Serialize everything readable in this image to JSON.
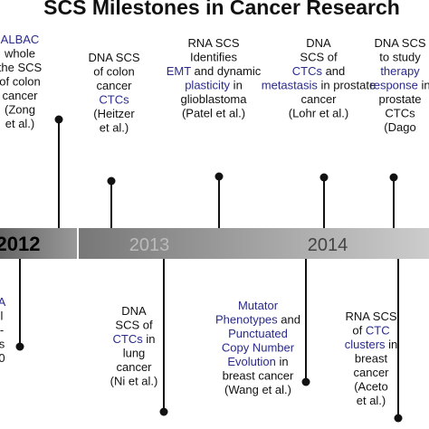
{
  "title": "SCS Milestones in Cancer Research",
  "highlight_color": "#2a2a8c",
  "years": [
    "2012",
    "2013",
    "2014"
  ],
  "top_events": [
    {
      "lines": [
        [
          {
            "text": "ALBAC",
            "color": "#2a2a8c"
          }
        ],
        "whole",
        "the SCS",
        "of colon",
        "cancer",
        "(Zong",
        "et al.)"
      ]
    },
    {
      "lines": [
        "DNA SCS",
        "of colon",
        "cancer",
        [
          {
            "text": "CTCs",
            "color": "#2a2a8c"
          }
        ],
        "(Heitzer",
        "et al.)"
      ]
    },
    {
      "lines": [
        "RNA SCS",
        "Identifies",
        [
          {
            "text": "EMT",
            "color": "#2a2a8c"
          },
          " and dynamic"
        ],
        [
          {
            "text": "plasticity",
            "color": "#2a2a8c"
          },
          " in"
        ],
        "glioblastoma",
        "(Patel et al.)"
      ]
    },
    {
      "lines": [
        "DNA",
        "SCS of",
        [
          {
            "text": "CTCs",
            "color": "#2a2a8c"
          },
          " and"
        ],
        [
          {
            "text": "metastasis",
            "color": "#2a2a8c"
          },
          " in prostate"
        ],
        "cancer",
        "(Lohr et al.)"
      ]
    },
    {
      "lines": [
        "DNA SCS",
        "to study",
        [
          {
            "text": "therapy",
            "color": "#2a2a8c"
          }
        ],
        [
          {
            "text": "response",
            "color": "#2a2a8c"
          },
          " in"
        ],
        "prostate",
        "CTCs",
        "(Dago"
      ]
    }
  ],
  "bottom_events": [
    {
      "lines": [
        [
          {
            "text": "A",
            "color": "#2a2a8c"
          }
        ],
        "l",
        "-",
        "s",
        "0"
      ]
    },
    {
      "lines": [
        "DNA",
        "SCS of",
        [
          {
            "text": "CTCs",
            "color": "#2a2a8c"
          },
          " in"
        ],
        "lung",
        "cancer",
        "(Ni et al.)"
      ]
    },
    {
      "lines": [
        [
          {
            "text": "Mutator",
            "color": "#2a2a8c"
          }
        ],
        [
          {
            "text": "Phenotypes",
            "color": "#2a2a8c"
          },
          " and"
        ],
        [
          {
            "text": "Punctuated",
            "color": "#2a2a8c"
          }
        ],
        [
          {
            "text": "Copy Number",
            "color": "#2a2a8c"
          }
        ],
        [
          {
            "text": "Evolution",
            "color": "#2a2a8c"
          },
          " in"
        ],
        "breast cancer",
        "(Wang et al.)"
      ]
    },
    {
      "lines": [
        "RNA SCS",
        [
          {
            "text": "of ",
            "color": null
          },
          {
            "text": "CTC",
            "color": "#2a2a8c"
          }
        ],
        [
          {
            "text": "clusters",
            "color": "#2a2a8c"
          },
          " in"
        ],
        "breast",
        "cancer",
        "(Aceto",
        "et al.)"
      ]
    }
  ]
}
